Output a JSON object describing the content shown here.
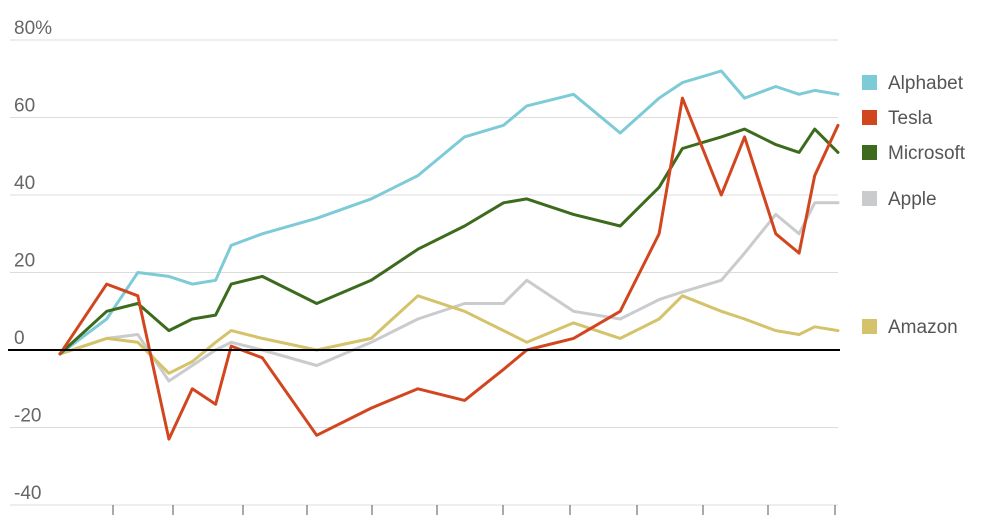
{
  "chart_data": {
    "type": "line",
    "title": "",
    "xlabel": "",
    "ylabel": "",
    "ylim": [
      -40,
      80
    ],
    "y_ticks": [
      -40,
      -20,
      0,
      20,
      40,
      60,
      80
    ],
    "y_tick_labels": [
      "-40",
      "-20",
      "0",
      "20",
      "40",
      "60",
      "80%"
    ],
    "grid": true,
    "zero_line": true,
    "legend_placement": "right",
    "x": [
      0,
      6,
      10,
      14,
      17,
      20,
      22,
      26,
      33,
      40,
      46,
      52,
      57,
      60,
      66,
      72,
      77,
      80,
      85,
      88,
      92,
      95,
      97,
      100
    ],
    "series": [
      {
        "name": "Alphabet",
        "color": "#7ecbd8",
        "values": [
          -1,
          8,
          20,
          19,
          17,
          18,
          27,
          30,
          34,
          39,
          45,
          55,
          58,
          63,
          66,
          56,
          65,
          69,
          72,
          65,
          68,
          66,
          67,
          66
        ]
      },
      {
        "name": "Tesla",
        "color": "#d2461f",
        "values": [
          -1,
          17,
          14,
          -23,
          -10,
          -14,
          1,
          -2,
          -22,
          -15,
          -10,
          -13,
          -5,
          0,
          3,
          10,
          30,
          65,
          40,
          55,
          30,
          25,
          45,
          58
        ]
      },
      {
        "name": "Microsoft",
        "color": "#3d6b1d",
        "values": [
          -1,
          10,
          12,
          5,
          8,
          9,
          17,
          19,
          12,
          18,
          26,
          32,
          38,
          39,
          35,
          32,
          42,
          52,
          55,
          57,
          53,
          51,
          57,
          51
        ]
      },
      {
        "name": "Apple",
        "color": "#c9cbcd",
        "values": [
          -1,
          3,
          4,
          -8,
          -4,
          0,
          2,
          0,
          -4,
          2,
          8,
          12,
          12,
          18,
          10,
          8,
          13,
          15,
          18,
          25,
          35,
          30,
          38,
          38
        ]
      },
      {
        "name": "Amazon",
        "color": "#d4c36a",
        "values": [
          -1,
          3,
          2,
          -6,
          -3,
          2,
          5,
          3,
          0,
          3,
          14,
          10,
          5,
          2,
          7,
          3,
          8,
          14,
          10,
          8,
          5,
          4,
          6,
          5
        ]
      }
    ]
  }
}
